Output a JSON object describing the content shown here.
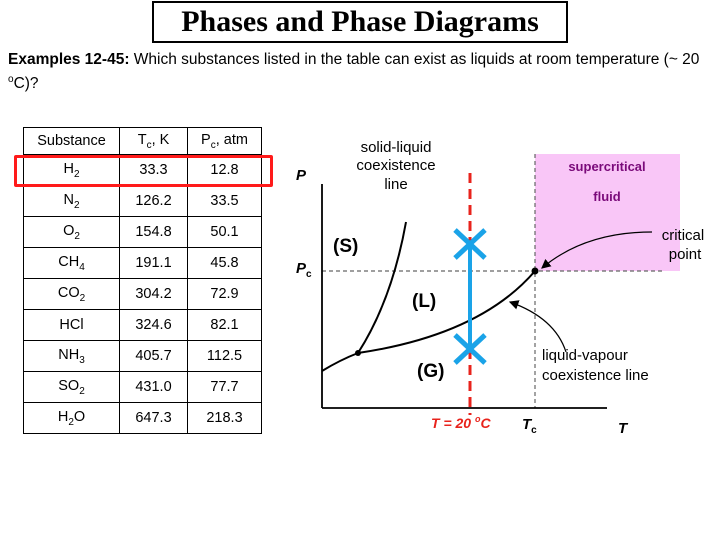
{
  "title": "Phases and Phase Diagrams",
  "question": {
    "lead": "Examples 12-45:",
    "text_before_deg": " Which substances listed in the table can exist as liquids at room temperature (~ 20 ",
    "deg": "o",
    "text_after_deg": "C)?"
  },
  "table": {
    "headers": [
      {
        "main": "Substance",
        "sub": "",
        "tail": ""
      },
      {
        "main": "T",
        "sub": "c",
        "tail": ", K"
      },
      {
        "main": "P",
        "sub": "c",
        "tail": ", atm"
      }
    ],
    "rows": [
      {
        "formula": "H",
        "sub": "2",
        "tc": "33.3",
        "pc": "12.8"
      },
      {
        "formula": "N",
        "sub": "2",
        "tc": "126.2",
        "pc": "33.5"
      },
      {
        "formula": "O",
        "sub": "2",
        "tc": "154.8",
        "pc": "50.1"
      },
      {
        "formula": "CH",
        "sub": "4",
        "tc": "191.1",
        "pc": "45.8"
      },
      {
        "formula": "CO",
        "sub": "2",
        "tc": "304.2",
        "pc": "72.9"
      },
      {
        "formula": "HCl",
        "sub": "",
        "tc": "324.6",
        "pc": "82.1"
      },
      {
        "formula": "NH",
        "sub": "3",
        "tc": "405.7",
        "pc": "112.5"
      },
      {
        "formula": "SO",
        "sub": "2",
        "tc": "431.0",
        "pc": "77.7"
      },
      {
        "formula": "H",
        "sub": "2",
        "formula_tail": "O",
        "tc": "647.3",
        "pc": "218.3"
      }
    ]
  },
  "diagram": {
    "solid_liquid_label": [
      "solid-liquid",
      "coexistence",
      "line"
    ],
    "supercritical_label": [
      "supercritical",
      "fluid"
    ],
    "critical_point_label": [
      "critical",
      "point"
    ],
    "liquid_vapour_label": [
      "liquid-vapour",
      "coexistence line"
    ],
    "axis_p": "P",
    "axis_t": "T",
    "pc_main": "P",
    "pc_sub": "c",
    "tc_main": "T",
    "tc_sub": "c",
    "phase_s": "(S)",
    "phase_l": "(L)",
    "phase_g": "(G)",
    "room_temp_prefix": "T = 20 ",
    "room_temp_deg": "o",
    "room_temp_suffix": "C",
    "colors": {
      "red": "#e8231c",
      "blue": "#1aa3e8",
      "supercritical_fill": "#f9c6f7"
    }
  }
}
